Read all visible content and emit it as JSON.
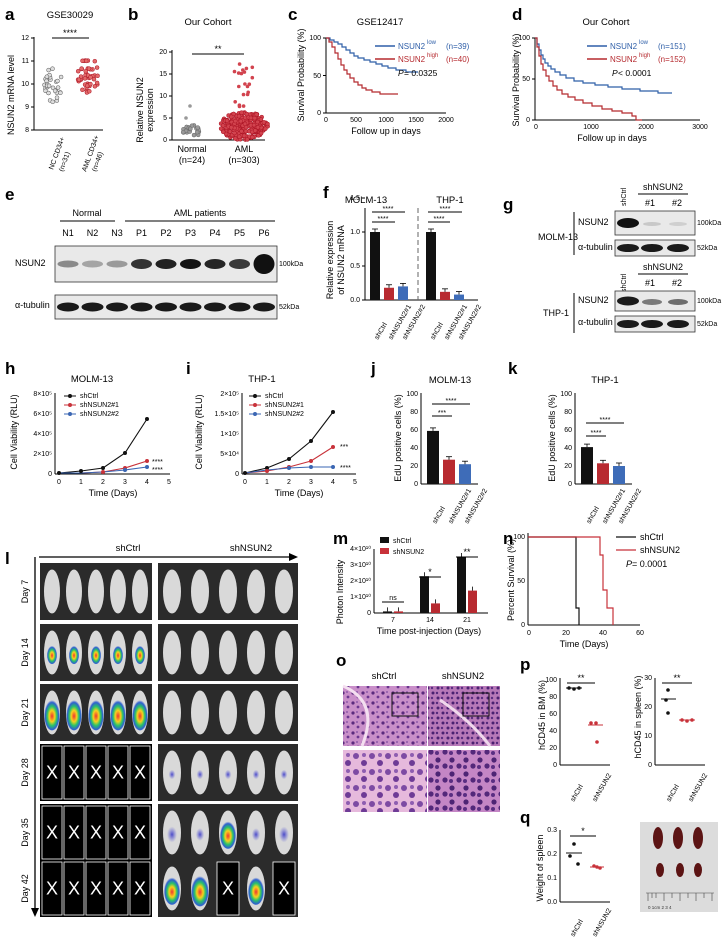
{
  "colors": {
    "low": "#2f5fa8",
    "high": "#b52a2f",
    "ctrl": "#111111",
    "sh1": "#c8323a",
    "sh2": "#3a66b3",
    "bar_ctrl": "#111111",
    "bar_sh1": "#b82a30",
    "bar_sh2": "#3e6cb8"
  },
  "panels": {
    "a": {
      "letter": "a",
      "title": "GSE30029",
      "ylabel": "NSUN2 mRNA level",
      "yticks": [
        "8",
        "9",
        "10",
        "11",
        "12"
      ],
      "xticks": [
        "NC CD34+",
        "AML CD34+"
      ],
      "ns": [
        "(n=31)",
        "(n=46)"
      ],
      "sig": "****"
    },
    "b": {
      "letter": "b",
      "title": "Our Cohort",
      "ylabel1": "Relative NSUN2",
      "ylabel2": "expression",
      "yticks": [
        "0",
        "5",
        "10",
        "15",
        "20"
      ],
      "groups": [
        "Normal",
        "AML"
      ],
      "ns": [
        "(n=24)",
        "(n=303)"
      ],
      "sig": "**"
    },
    "c": {
      "letter": "c",
      "title": "GSE12417",
      "ylabel": "Survival Probability (%)",
      "xlabel": "Follow up in days",
      "yticks": [
        "0",
        "50",
        "100"
      ],
      "xticks": [
        "0",
        "500",
        "1000",
        "1500",
        "2000"
      ],
      "leg_low": "NSUN2",
      "leg_low_sup": "low",
      "leg_low_n": "(n=39)",
      "leg_high": "NSUN2",
      "leg_high_sup": "high",
      "leg_high_n": "(n=40)",
      "p_label": "P",
      "p_value": " = 0.0325"
    },
    "d": {
      "letter": "d",
      "title": "Our Cohort",
      "ylabel": "Survival Probability (%)",
      "xlabel": "Follow up in days",
      "yticks": [
        "0",
        "50",
        "100"
      ],
      "xticks": [
        "0",
        "1000",
        "2000",
        "3000"
      ],
      "leg_low": "NSUN2",
      "leg_low_sup": "low",
      "leg_low_n": "(n=151)",
      "leg_high": "NSUN2",
      "leg_high_sup": "high",
      "leg_high_n": "(n=152)",
      "p_label": "P",
      "p_value": " < 0.0001"
    },
    "e": {
      "letter": "e",
      "normal": "Normal",
      "aml": "AML patients",
      "lanes": [
        "N1",
        "N2",
        "N3",
        "P1",
        "P2",
        "P3",
        "P4",
        "P5",
        "P6"
      ],
      "row1": "NSUN2",
      "row2": "α-tubulin",
      "kda1": "100kDa",
      "kda2": "52kDa"
    },
    "f": {
      "letter": "f",
      "cell1": "MOLM-13",
      "cell2": "THP-1",
      "ylabel1": "Relative expression",
      "ylabel2": "of NSUN2 mRNA",
      "yticks": [
        "0.0",
        "0.5",
        "1.0",
        "1.5"
      ],
      "xlabels": [
        "shCtrl",
        "shNSUN2#1",
        "shNSUN2#2"
      ],
      "values_molm": [
        1.0,
        0.18,
        0.2
      ],
      "values_thp": [
        1.0,
        0.12,
        0.08
      ],
      "sig": "****"
    },
    "g": {
      "letter": "g",
      "cell1": "MOLM-13",
      "cell2": "THP-1",
      "shctrl": "shCtrl",
      "shnsun2": "shNSUN2",
      "n1": "#1",
      "n2": "#2",
      "row1": "NSUN2",
      "row2": "α-tubulin",
      "kda1": "100kDa",
      "kda2": "52kDa"
    },
    "h": {
      "letter": "h",
      "title": "MOLM-13",
      "ylabel": "Cell Viability (RLU)",
      "xlabel": "Time (Days)",
      "yticks": [
        "0",
        "2×10⁵",
        "4×10⁵",
        "6×10⁵",
        "8×10⁵"
      ],
      "xticks": [
        "0",
        "1",
        "2",
        "3",
        "4",
        "5"
      ],
      "series": [
        "shCtrl",
        "shNSUN2#1",
        "shNSUN2#2"
      ],
      "sig1": "****",
      "sig2": "****"
    },
    "i": {
      "letter": "i",
      "title": "THP-1",
      "ylabel": "Cell Viability (RLU)",
      "xlabel": "Time (Days)",
      "yticks": [
        "0",
        "5×10⁴",
        "1×10⁵",
        "1.5×10⁵",
        "2×10⁵"
      ],
      "xticks": [
        "0",
        "1",
        "2",
        "3",
        "4",
        "5"
      ],
      "series": [
        "shCtrl",
        "shNSUN2#1",
        "shNSUN2#2"
      ],
      "sig1": "***",
      "sig2": "****"
    },
    "j": {
      "letter": "j",
      "title": "MOLM-13",
      "ylabel": "EdU positive cells (%)",
      "yticks": [
        "0",
        "20",
        "40",
        "60",
        "80",
        "100"
      ],
      "xlabels": [
        "shCtrl",
        "shNSUN2#1",
        "shNSUN2#2"
      ],
      "values": [
        59,
        27,
        22
      ],
      "sig1": "***",
      "sig2": "****"
    },
    "k": {
      "letter": "k",
      "title": "THP-1",
      "ylabel": "EdU positive cells (%)",
      "yticks": [
        "0",
        "20",
        "40",
        "60",
        "80",
        "100"
      ],
      "xlabels": [
        "shCtrl",
        "shNSUN2#1",
        "shNSUN2#2"
      ],
      "values": [
        41,
        23,
        20
      ],
      "sig1": "****",
      "sig2": "****"
    },
    "l": {
      "letter": "l",
      "shctrl": "shCtrl",
      "shnsun2": "shNSUN2",
      "days": [
        "Day 7",
        "Day 14",
        "Day 21",
        "Day 28",
        "Day 35",
        "Day 42"
      ],
      "x": "X"
    },
    "m": {
      "letter": "m",
      "ylabel": "Photon Intensity",
      "xlabel": "Time post-injection (Days)",
      "yticks": [
        "0",
        "1×10¹⁰",
        "2×10¹⁰",
        "3×10¹⁰",
        "4×10¹⁰"
      ],
      "groups": [
        "7",
        "14",
        "21"
      ],
      "leg": [
        "shCtrl",
        "shNSUN2"
      ],
      "ctrl": [
        0.1,
        2.3,
        3.5
      ],
      "sh": [
        0.1,
        0.6,
        1.4
      ],
      "sig": [
        "ns",
        "*",
        "**"
      ]
    },
    "n": {
      "letter": "n",
      "ylabel": "Percent Survival (%)",
      "xlabel": "Time (Days)",
      "yticks": [
        "0",
        "50",
        "100"
      ],
      "xticks": [
        "0",
        "20",
        "40",
        "60"
      ],
      "leg": [
        "shCtrl",
        "shNSUN2"
      ],
      "p_label": "P",
      "p_value": " = 0.0001"
    },
    "o": {
      "letter": "o",
      "shctrl": "shCtrl",
      "shnsun2": "shNSUN2"
    },
    "p": {
      "letter": "p",
      "ylabel1": "hCD45 in BM (%)",
      "yticks1": [
        "0",
        "20",
        "40",
        "60",
        "80",
        "100"
      ],
      "ylabel2": "hCD45 in spleen (%)",
      "yticks2": [
        "0",
        "10",
        "20",
        "30"
      ],
      "xlabels": [
        "shCtrl",
        "shNSUN2"
      ],
      "sig": "**"
    },
    "q": {
      "letter": "q",
      "ylabel": "Weight of spleen",
      "yticks": [
        "0.0",
        "0.1",
        "0.2",
        "0.3"
      ],
      "xlabels": [
        "shCtrl",
        "shNSUN2"
      ],
      "sig": "*",
      "ruler": "0 1cm 2 3 4"
    }
  }
}
